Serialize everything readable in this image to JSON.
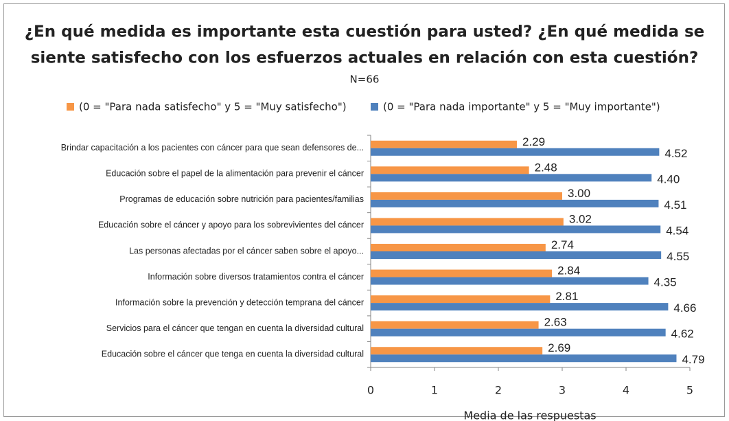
{
  "chart_data": {
    "type": "hbar",
    "title": [
      "¿En qué medida es importante esta cuestión para usted? ¿En qué medida se",
      "siente satisfecho con los esfuerzos actuales en relación con esta cuestión?"
    ],
    "subtitle": "N=66",
    "categories": [
      "Brindar capacitación a los pacientes con cáncer para que sean defensores de...",
      "Educación sobre el papel de la alimentación para prevenir el cáncer",
      "Programas de educación sobre nutrición para pacientes/familias",
      "Educación sobre el cáncer y apoyo para los sobrevivientes del cáncer",
      "Las personas afectadas por el cáncer saben sobre el apoyo...",
      "Información sobre diversos tratamientos contra el cáncer",
      "Información sobre la prevención y detección temprana del cáncer",
      "Servicios para el cáncer que tengan en cuenta la diversidad cultural",
      "Educación sobre el cáncer que tenga en cuenta la diversidad cultural"
    ],
    "series": [
      {
        "name": "(0 = \"Para nada satisfecho\" y 5 = \"Muy satisfecho\")",
        "color": "#f79646",
        "values": [
          2.29,
          2.48,
          3.0,
          3.02,
          2.74,
          2.84,
          2.81,
          2.63,
          2.69
        ],
        "value_labels": [
          "2.29",
          "2.48",
          "3.00",
          "3.02",
          "2.74",
          "2.84",
          "2.81",
          "2.63",
          "2.69"
        ]
      },
      {
        "name": "(0 = \"Para nada importante\" y 5 = \"Muy importante\")",
        "color": "#4f81bd",
        "values": [
          4.52,
          4.4,
          4.51,
          4.54,
          4.55,
          4.35,
          4.66,
          4.62,
          4.79
        ],
        "value_labels": [
          "4.52",
          "4.40",
          "4.51",
          "4.54",
          "4.55",
          "4.35",
          "4.66",
          "4.62",
          "4.79"
        ]
      }
    ],
    "x_label": "Media de las respuestas",
    "xlim": [
      0,
      5
    ],
    "xticks": [
      0,
      1,
      2,
      3,
      4,
      5
    ],
    "legend": "top"
  }
}
